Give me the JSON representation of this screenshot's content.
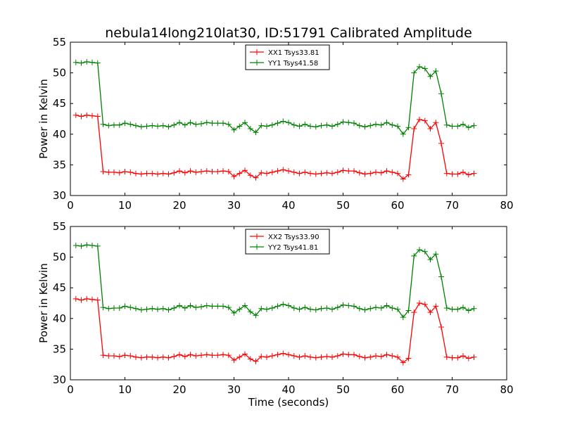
{
  "figure": {
    "title": "nebula14long210lat30, ID:51791 Calibrated Amplitude"
  },
  "chart_data": [
    {
      "type": "line",
      "title": "nebula14long210lat30, ID:51791 Calibrated Amplitude",
      "xlabel": "",
      "ylabel": "Power in Kelvin",
      "xlim": [
        0,
        80
      ],
      "ylim": [
        30,
        55
      ],
      "xticks": [
        0,
        10,
        20,
        30,
        40,
        50,
        60,
        70,
        80
      ],
      "yticks": [
        30,
        35,
        40,
        45,
        50,
        55
      ],
      "grid": false,
      "legend_position": "upper-center",
      "x": [
        1,
        2,
        3,
        4,
        5,
        6,
        7,
        8,
        9,
        10,
        11,
        12,
        13,
        14,
        15,
        16,
        17,
        18,
        19,
        20,
        21,
        22,
        23,
        24,
        25,
        26,
        27,
        28,
        29,
        30,
        31,
        32,
        33,
        34,
        35,
        36,
        37,
        38,
        39,
        40,
        41,
        42,
        43,
        44,
        45,
        46,
        47,
        48,
        49,
        50,
        51,
        52,
        53,
        54,
        55,
        56,
        57,
        58,
        59,
        60,
        61,
        62,
        63,
        64,
        65,
        66,
        67,
        68,
        69,
        70,
        71,
        72,
        73,
        74
      ],
      "series": [
        {
          "name": "XX1 Tsys33.81",
          "color": "#ff0000",
          "values": [
            43.1,
            42.9,
            43.1,
            43.0,
            42.9,
            33.9,
            33.8,
            33.8,
            33.7,
            33.9,
            33.8,
            33.6,
            33.5,
            33.6,
            33.6,
            33.5,
            33.6,
            33.5,
            33.7,
            34.0,
            33.7,
            34.0,
            33.8,
            33.9,
            34.0,
            33.9,
            33.9,
            34.0,
            33.9,
            33.1,
            33.6,
            34.1,
            33.3,
            32.9,
            33.7,
            33.6,
            33.8,
            34.0,
            34.2,
            34.0,
            33.8,
            33.6,
            33.8,
            33.6,
            33.5,
            33.6,
            33.7,
            33.6,
            33.8,
            34.1,
            34.0,
            34.0,
            33.7,
            33.5,
            33.6,
            33.8,
            33.7,
            34.0,
            33.8,
            33.6,
            32.7,
            33.4,
            40.9,
            42.4,
            42.2,
            40.9,
            41.9,
            38.5,
            33.6,
            33.5,
            33.5,
            33.8,
            33.4,
            33.6
          ]
        },
        {
          "name": "YY1 Tsys41.58",
          "color": "#008000",
          "values": [
            51.7,
            51.6,
            51.8,
            51.7,
            51.6,
            41.6,
            41.4,
            41.5,
            41.5,
            41.8,
            41.6,
            41.4,
            41.2,
            41.3,
            41.4,
            41.3,
            41.4,
            41.2,
            41.5,
            41.9,
            41.5,
            41.9,
            41.6,
            41.7,
            41.9,
            41.8,
            41.8,
            41.8,
            41.6,
            40.7,
            41.3,
            41.9,
            40.9,
            40.3,
            41.4,
            41.3,
            41.5,
            41.8,
            42.1,
            41.9,
            41.5,
            41.3,
            41.6,
            41.3,
            41.2,
            41.4,
            41.5,
            41.3,
            41.6,
            42.0,
            41.9,
            41.8,
            41.4,
            41.2,
            41.4,
            41.6,
            41.5,
            41.9,
            41.5,
            41.3,
            40.0,
            41.1,
            50.0,
            51.0,
            50.7,
            49.4,
            50.3,
            46.6,
            41.5,
            41.3,
            41.3,
            41.6,
            41.1,
            41.4
          ]
        }
      ]
    },
    {
      "type": "line",
      "title": "",
      "xlabel": "Time (seconds)",
      "ylabel": "Power in Kelvin",
      "xlim": [
        0,
        80
      ],
      "ylim": [
        30,
        55
      ],
      "xticks": [
        0,
        10,
        20,
        30,
        40,
        50,
        60,
        70,
        80
      ],
      "yticks": [
        30,
        35,
        40,
        45,
        50,
        55
      ],
      "grid": false,
      "legend_position": "upper-center",
      "x": [
        1,
        2,
        3,
        4,
        5,
        6,
        7,
        8,
        9,
        10,
        11,
        12,
        13,
        14,
        15,
        16,
        17,
        18,
        19,
        20,
        21,
        22,
        23,
        24,
        25,
        26,
        27,
        28,
        29,
        30,
        31,
        32,
        33,
        34,
        35,
        36,
        37,
        38,
        39,
        40,
        41,
        42,
        43,
        44,
        45,
        46,
        47,
        48,
        49,
        50,
        51,
        52,
        53,
        54,
        55,
        56,
        57,
        58,
        59,
        60,
        61,
        62,
        63,
        64,
        65,
        66,
        67,
        68,
        69,
        70,
        71,
        72,
        73,
        74
      ],
      "series": [
        {
          "name": "XX2 Tsys33.90",
          "color": "#ff0000",
          "values": [
            43.2,
            43.0,
            43.2,
            43.1,
            43.0,
            34.0,
            33.9,
            33.9,
            33.8,
            34.0,
            33.9,
            33.7,
            33.6,
            33.7,
            33.7,
            33.6,
            33.7,
            33.6,
            33.8,
            34.1,
            33.8,
            34.1,
            33.9,
            34.0,
            34.1,
            34.0,
            34.0,
            34.1,
            34.0,
            33.2,
            33.7,
            34.2,
            33.4,
            33.0,
            33.8,
            33.7,
            33.9,
            34.1,
            34.3,
            34.1,
            33.9,
            33.7,
            33.9,
            33.7,
            33.6,
            33.7,
            33.8,
            33.7,
            33.9,
            34.2,
            34.1,
            34.1,
            33.8,
            33.6,
            33.7,
            33.9,
            33.8,
            34.1,
            33.9,
            33.7,
            32.8,
            33.5,
            41.0,
            42.5,
            42.3,
            41.0,
            42.0,
            38.6,
            33.7,
            33.6,
            33.6,
            33.9,
            33.5,
            33.7
          ]
        },
        {
          "name": "YY2 Tsys41.81",
          "color": "#008000",
          "values": [
            51.9,
            51.8,
            52.0,
            51.9,
            51.8,
            41.8,
            41.6,
            41.7,
            41.7,
            42.0,
            41.8,
            41.6,
            41.4,
            41.5,
            41.6,
            41.5,
            41.6,
            41.4,
            41.7,
            42.1,
            41.7,
            42.1,
            41.8,
            41.9,
            42.1,
            42.0,
            42.0,
            42.0,
            41.8,
            40.9,
            41.5,
            42.1,
            41.1,
            40.5,
            41.6,
            41.5,
            41.7,
            42.0,
            42.3,
            42.1,
            41.7,
            41.5,
            41.8,
            41.5,
            41.4,
            41.6,
            41.7,
            41.5,
            41.8,
            42.2,
            42.1,
            42.0,
            41.6,
            41.4,
            41.6,
            41.8,
            41.7,
            42.1,
            41.7,
            41.5,
            40.2,
            41.3,
            50.2,
            51.2,
            50.9,
            49.6,
            50.5,
            46.8,
            41.7,
            41.5,
            41.5,
            41.8,
            41.3,
            41.6
          ]
        }
      ]
    }
  ]
}
